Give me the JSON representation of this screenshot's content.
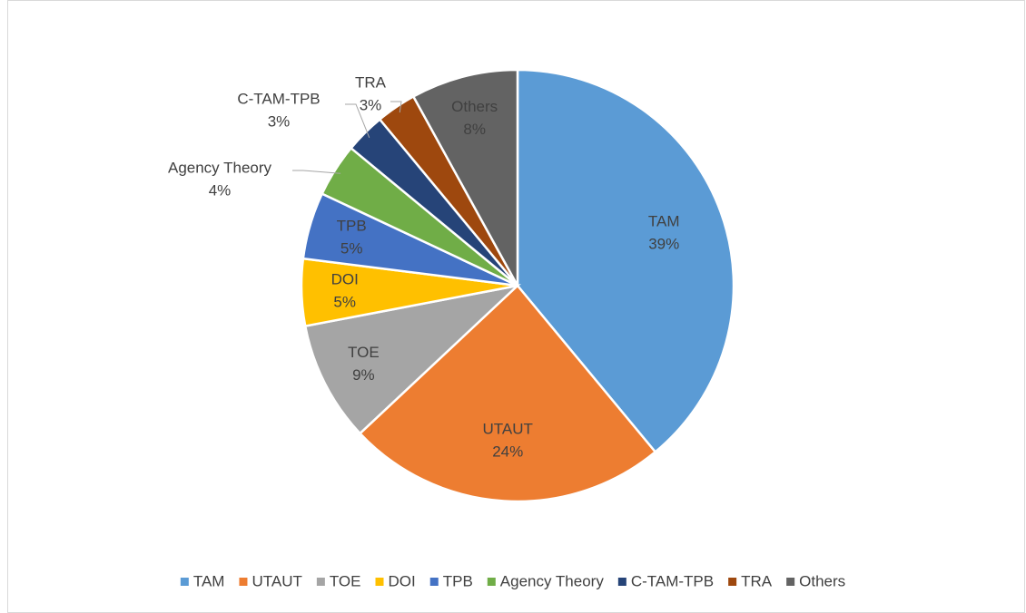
{
  "chart_data": {
    "type": "pie",
    "categories": [
      "TAM",
      "UTAUT",
      "TOE",
      "DOI",
      "TPB",
      "Agency Theory",
      "C-TAM-TPB",
      "TRA",
      "Others"
    ],
    "values": [
      39,
      24,
      9,
      5,
      5,
      4,
      3,
      3,
      8
    ],
    "value_labels": [
      "39%",
      "24%",
      "9%",
      "5%",
      "5%",
      "4%",
      "3%",
      "3%",
      "8%"
    ],
    "colors": [
      "#5b9bd5",
      "#ed7d31",
      "#a5a5a5",
      "#ffc000",
      "#4472c4",
      "#70ad47",
      "#264478",
      "#9e480e",
      "#636363"
    ],
    "legend": "bottom"
  }
}
